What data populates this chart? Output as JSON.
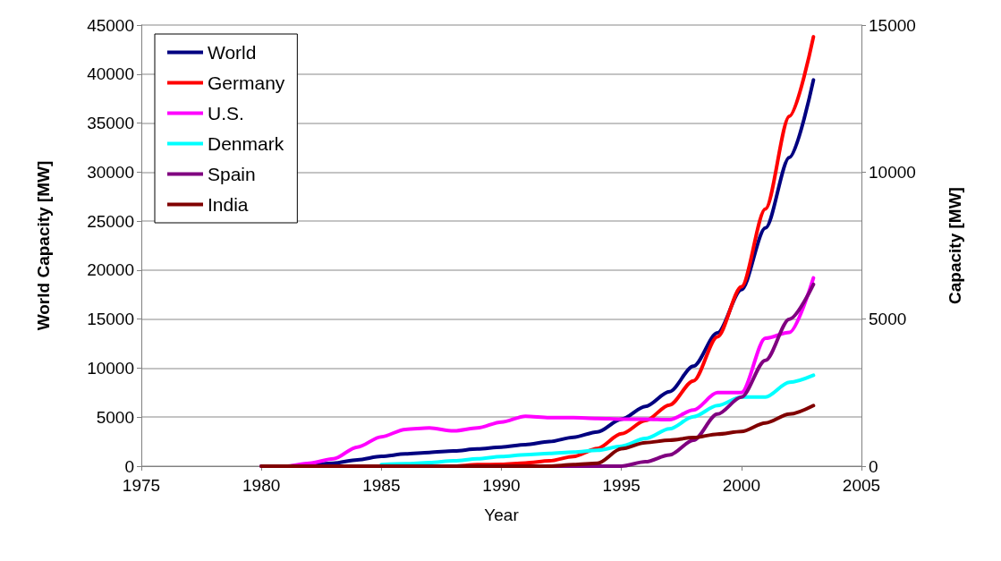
{
  "chart_data": {
    "type": "line",
    "xlabel": "Year",
    "ylabel": "World Capacity [MW]",
    "y2label": "Capacity [MW]",
    "x": [
      1980,
      1981,
      1982,
      1983,
      1984,
      1985,
      1986,
      1987,
      1988,
      1989,
      1990,
      1991,
      1992,
      1993,
      1994,
      1995,
      1996,
      1997,
      1998,
      1999,
      2000,
      2001,
      2002,
      2003
    ],
    "series": [
      {
        "name": "World",
        "color": "#000080",
        "values": [
          0,
          0,
          100,
          300,
          650,
          1000,
          1250,
          1400,
          1550,
          1750,
          1950,
          2200,
          2500,
          2950,
          3500,
          4800,
          6100,
          7600,
          10200,
          13600,
          18000,
          24300,
          31500,
          39400
        ]
      },
      {
        "name": "Germany",
        "color": "#ff0000",
        "axis": "y2",
        "values": [
          null,
          null,
          null,
          null,
          null,
          null,
          0,
          0,
          0,
          50,
          60,
          110,
          180,
          330,
          600,
          1100,
          1550,
          2080,
          2900,
          4400,
          6100,
          8750,
          11900,
          14600
        ]
      },
      {
        "name": "U.S.",
        "color": "#ff00ff",
        "axis": "y2",
        "values": [
          0,
          0,
          100,
          250,
          650,
          1000,
          1250,
          1300,
          1200,
          1300,
          1500,
          1700,
          1650,
          1650,
          1620,
          1600,
          1600,
          1580,
          1910,
          2500,
          2500,
          4350,
          4550,
          6400
        ]
      },
      {
        "name": "Denmark",
        "color": "#00ffff",
        "axis": "y2",
        "values": [
          null,
          null,
          null,
          null,
          null,
          50,
          80,
          120,
          180,
          250,
          330,
          390,
          430,
          480,
          540,
          680,
          940,
          1270,
          1680,
          2060,
          2350,
          2350,
          2850,
          3090
        ]
      },
      {
        "name": "Spain",
        "color": "#800080",
        "axis": "y2",
        "values": [
          0,
          0,
          0,
          0,
          0,
          0,
          0,
          0,
          0,
          0,
          0,
          0,
          0,
          0,
          0,
          0,
          150,
          380,
          880,
          1770,
          2350,
          3600,
          5000,
          6180
        ]
      },
      {
        "name": "India",
        "color": "#800000",
        "axis": "y2",
        "values": [
          0,
          0,
          0,
          0,
          0,
          0,
          0,
          0,
          0,
          0,
          0,
          0,
          0,
          50,
          100,
          590,
          800,
          880,
          970,
          1090,
          1180,
          1470,
          1770,
          2060
        ]
      }
    ],
    "xlim": [
      1975,
      2005
    ],
    "xticks": [
      1975,
      1980,
      1985,
      1990,
      1995,
      2000,
      2005
    ],
    "ylim": [
      0,
      45000
    ],
    "yticks": [
      0,
      5000,
      10000,
      15000,
      20000,
      25000,
      30000,
      35000,
      40000,
      45000
    ],
    "y2lim": [
      0,
      15000
    ],
    "y2ticks": [
      0,
      5000,
      10000,
      15000
    ],
    "grid": "y",
    "legend": "top left",
    "marker": "none",
    "line_style": "solid"
  }
}
